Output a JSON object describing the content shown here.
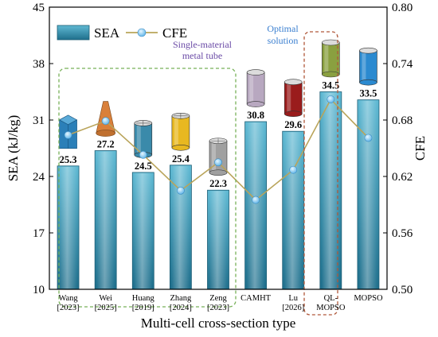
{
  "chart_data": {
    "type": "bar",
    "title": "",
    "xlabel": "Multi-cell cross-section type",
    "ylabel": "SEA (kJ/kg)",
    "y2label": "CFE",
    "categories": [
      [
        "Wang",
        "[2023]"
      ],
      [
        "Wei",
        "[2025]"
      ],
      [
        "Huang",
        "[2019]"
      ],
      [
        "Zhang",
        "[2024]"
      ],
      [
        "Zeng",
        "[2023]"
      ],
      [
        "CAMHT"
      ],
      [
        "Lu",
        "[2026]"
      ],
      [
        "QL-",
        "MOPSO"
      ],
      [
        "MOPSO"
      ]
    ],
    "ylim": [
      10,
      45
    ],
    "yticks": [
      10,
      17,
      24,
      31,
      38,
      45
    ],
    "y2lim": [
      0.5,
      0.8
    ],
    "y2ticks": [
      "0.50",
      "0.56",
      "0.62",
      "0.68",
      "0.74",
      "0.80"
    ],
    "series": [
      {
        "name": "SEA",
        "kind": "bar",
        "axis": "left",
        "values": [
          25.3,
          27.2,
          24.5,
          25.4,
          22.3,
          30.8,
          29.6,
          34.5,
          33.5
        ],
        "labels": [
          "25.3",
          "27.2",
          "24.5",
          "25.4",
          "22.3",
          "30.8",
          "29.6",
          "34.5",
          "33.5"
        ]
      },
      {
        "name": "CFE",
        "kind": "line",
        "axis": "right",
        "values": [
          0.664,
          0.679,
          0.643,
          0.605,
          0.635,
          0.595,
          0.627,
          0.702,
          0.661
        ]
      }
    ],
    "legend": {
      "placement": "top-left",
      "items": [
        "SEA",
        "CFE"
      ]
    },
    "annotations": {
      "group_label": [
        "Single-material",
        "metal tube"
      ],
      "optimal_label": [
        "Optimal",
        "solution"
      ]
    },
    "colors": {
      "bar_top": "#5fb9d3",
      "bar_bottom": "#1f6f8c",
      "bar_highlight": "#c6e8f2",
      "line": "#b9a45a",
      "marker": "#63b6e8",
      "group_box": "#78b159",
      "optimal_box": "#b0583a",
      "group_text": "#6a4aa6",
      "optimal_text": "#3a7fd0"
    },
    "tube_icons": [
      {
        "category": "Wang [2023]",
        "shape": "square-multicell",
        "color": "#2b7fb8"
      },
      {
        "category": "Wei [2025]",
        "shape": "cone",
        "color": "#d9803a"
      },
      {
        "category": "Huang [2019]",
        "shape": "multicell-tube",
        "color": "#3a8aaa"
      },
      {
        "category": "Zhang [2024]",
        "shape": "multicell-tube",
        "color": "#e8b820"
      },
      {
        "category": "Zeng [2023]",
        "shape": "multicell-tube",
        "color": "#a0a0a0"
      },
      {
        "category": "CAMHT",
        "shape": "tube",
        "color": "#b8a8c0"
      },
      {
        "category": "Lu [2026]",
        "shape": "tube",
        "color": "#9a1c1c"
      },
      {
        "category": "QL-MOPSO",
        "shape": "tube",
        "color": "#8aa040"
      },
      {
        "category": "MOPSO",
        "shape": "tube",
        "color": "#2b8ad0"
      }
    ]
  }
}
